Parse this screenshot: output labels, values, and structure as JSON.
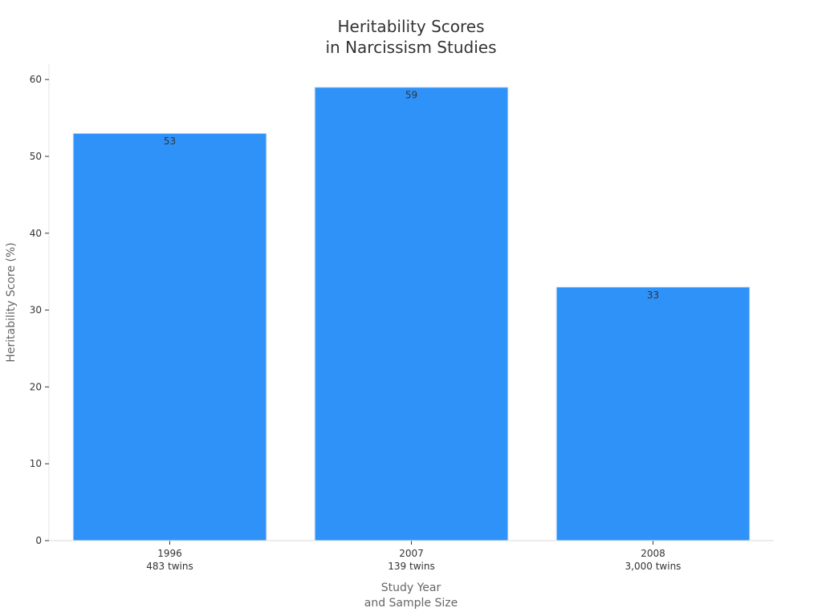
{
  "chart_data": {
    "type": "bar",
    "title": [
      "Heritability Scores",
      "in Narcissism Studies"
    ],
    "xlabel": [
      "Study Year",
      "and Sample Size"
    ],
    "ylabel": "Heritability Score (%)",
    "categories": [
      [
        "1996",
        "483 twins"
      ],
      [
        "2007",
        "139 twins"
      ],
      [
        "2008",
        "3,000 twins"
      ]
    ],
    "values": [
      53,
      59,
      33
    ],
    "data_labels": [
      "53",
      "59",
      "33"
    ],
    "ylim": [
      0,
      62
    ],
    "yticks": [
      0,
      10,
      20,
      30,
      40,
      50,
      60
    ],
    "grid": false,
    "bar_color": "#2f92f8",
    "bar_edge_color": "#dbe7f3"
  }
}
